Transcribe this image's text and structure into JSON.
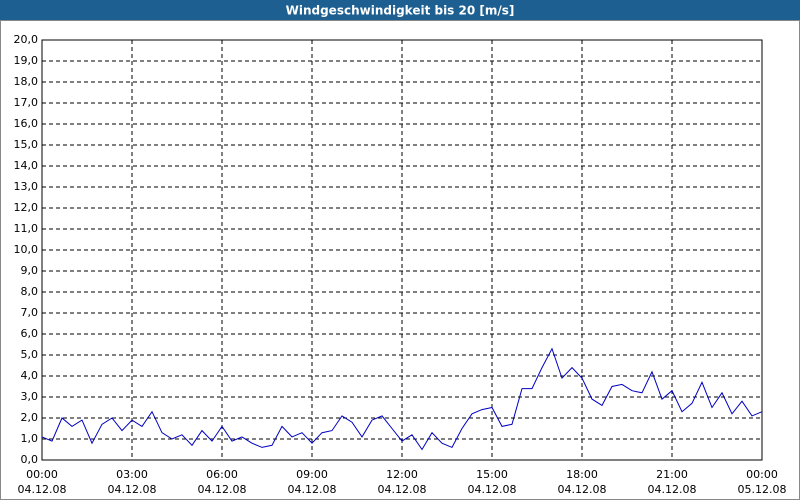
{
  "chart_data": {
    "type": "line",
    "title": "Windgeschwindigkeit bis 20 [m/s]",
    "x": [
      0,
      20,
      40,
      60,
      80,
      100,
      120,
      140,
      160,
      180,
      200,
      220,
      240,
      260,
      280,
      300,
      320,
      340,
      360,
      380,
      400,
      420,
      440,
      460,
      480,
      500,
      520,
      540,
      560,
      580,
      600,
      620,
      640,
      660,
      680,
      700,
      720,
      740,
      760,
      780,
      800,
      820,
      840,
      860,
      880,
      900,
      920,
      940,
      960,
      980,
      1000,
      1020,
      1040,
      1060,
      1080,
      1100,
      1120,
      1140,
      1160,
      1180,
      1200,
      1220,
      1240,
      1260,
      1280,
      1300,
      1320,
      1340,
      1360,
      1380,
      1400,
      1420,
      1440
    ],
    "series": [
      {
        "color": "#0000c0",
        "values": [
          1.1,
          0.9,
          2.0,
          1.6,
          1.9,
          0.8,
          1.7,
          2.0,
          1.4,
          1.9,
          1.6,
          2.3,
          1.3,
          1.0,
          1.2,
          0.7,
          1.4,
          0.9,
          1.6,
          0.9,
          1.1,
          0.8,
          0.6,
          0.7,
          1.6,
          1.1,
          1.3,
          0.8,
          1.3,
          1.4,
          2.1,
          1.8,
          1.1,
          1.9,
          2.1,
          1.5,
          0.9,
          1.2,
          0.5,
          1.3,
          0.8,
          0.6,
          1.5,
          2.2,
          2.4,
          2.5,
          1.6,
          1.7,
          3.4,
          3.4,
          4.4,
          5.3,
          3.9,
          4.4,
          3.9,
          2.9,
          2.6,
          3.5,
          3.6,
          3.3,
          3.2,
          4.2,
          2.9,
          3.3,
          2.3,
          2.7,
          3.7,
          2.5,
          3.2,
          2.2,
          2.8,
          2.1,
          2.3
        ]
      }
    ],
    "xlim": [
      0,
      1440
    ],
    "xticks": [
      {
        "value": 0,
        "label": "00:00",
        "date": "04.12.08"
      },
      {
        "value": 180,
        "label": "03:00",
        "date": "04.12.08"
      },
      {
        "value": 360,
        "label": "06:00",
        "date": "04.12.08"
      },
      {
        "value": 540,
        "label": "09:00",
        "date": "04.12.08"
      },
      {
        "value": 720,
        "label": "12:00",
        "date": "04.12.08"
      },
      {
        "value": 900,
        "label": "15:00",
        "date": "04.12.08"
      },
      {
        "value": 1080,
        "label": "18:00",
        "date": "04.12.08"
      },
      {
        "value": 1260,
        "label": "21:00",
        "date": "04.12.08"
      },
      {
        "value": 1440,
        "label": "00:00",
        "date": "05.12.08"
      }
    ],
    "ylim": [
      0,
      20
    ],
    "yticks": [
      {
        "value": 0,
        "label": "0,0"
      },
      {
        "value": 1,
        "label": "1,0"
      },
      {
        "value": 2,
        "label": "2,0"
      },
      {
        "value": 3,
        "label": "3,0"
      },
      {
        "value": 4,
        "label": "4,0"
      },
      {
        "value": 5,
        "label": "5,0"
      },
      {
        "value": 6,
        "label": "6,0"
      },
      {
        "value": 7,
        "label": "7,0"
      },
      {
        "value": 8,
        "label": "8,0"
      },
      {
        "value": 9,
        "label": "9,0"
      },
      {
        "value": 10,
        "label": "10,0"
      },
      {
        "value": 11,
        "label": "11,0"
      },
      {
        "value": 12,
        "label": "12,0"
      },
      {
        "value": 13,
        "label": "13,0"
      },
      {
        "value": 14,
        "label": "14,0"
      },
      {
        "value": 15,
        "label": "15,0"
      },
      {
        "value": 16,
        "label": "16,0"
      },
      {
        "value": 17,
        "label": "17,0"
      },
      {
        "value": 18,
        "label": "18,0"
      },
      {
        "value": 19,
        "label": "19,0"
      },
      {
        "value": 20,
        "label": "20,0"
      }
    ],
    "grid": true
  }
}
